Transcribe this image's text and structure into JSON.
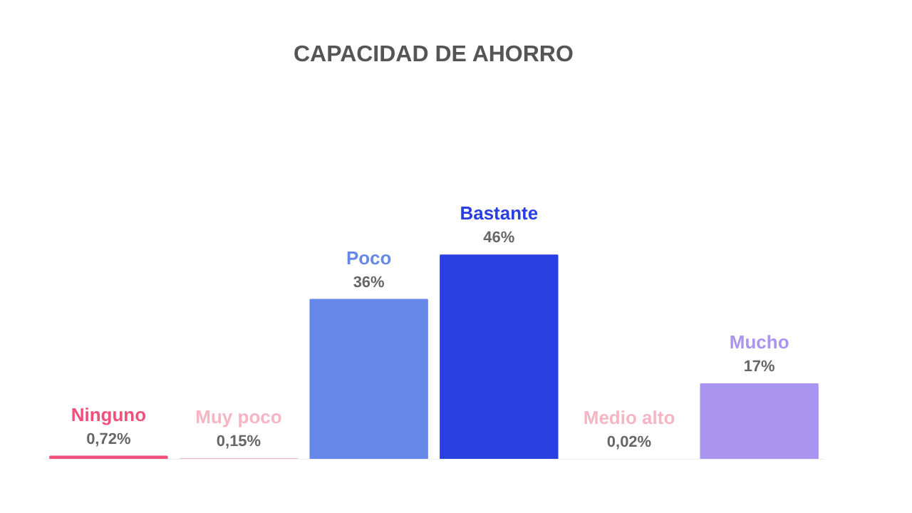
{
  "chart_data": {
    "type": "bar",
    "title": "CAPACIDAD DE AHORRO",
    "categories": [
      "Ninguno",
      "Muy poco",
      "Poco",
      "Bastante",
      "Medio alto",
      "Mucho"
    ],
    "values": [
      0.72,
      0.15,
      36,
      46,
      0.02,
      17
    ],
    "colors": [
      "#f0507a",
      "#f5b5c4",
      "#6688e8",
      "#2a3fe0",
      "#f5b5c4",
      "#a995f0"
    ],
    "value_labels": [
      "0,72%",
      "0,15%",
      "36%",
      "46%",
      "0,02%",
      "17%"
    ]
  }
}
